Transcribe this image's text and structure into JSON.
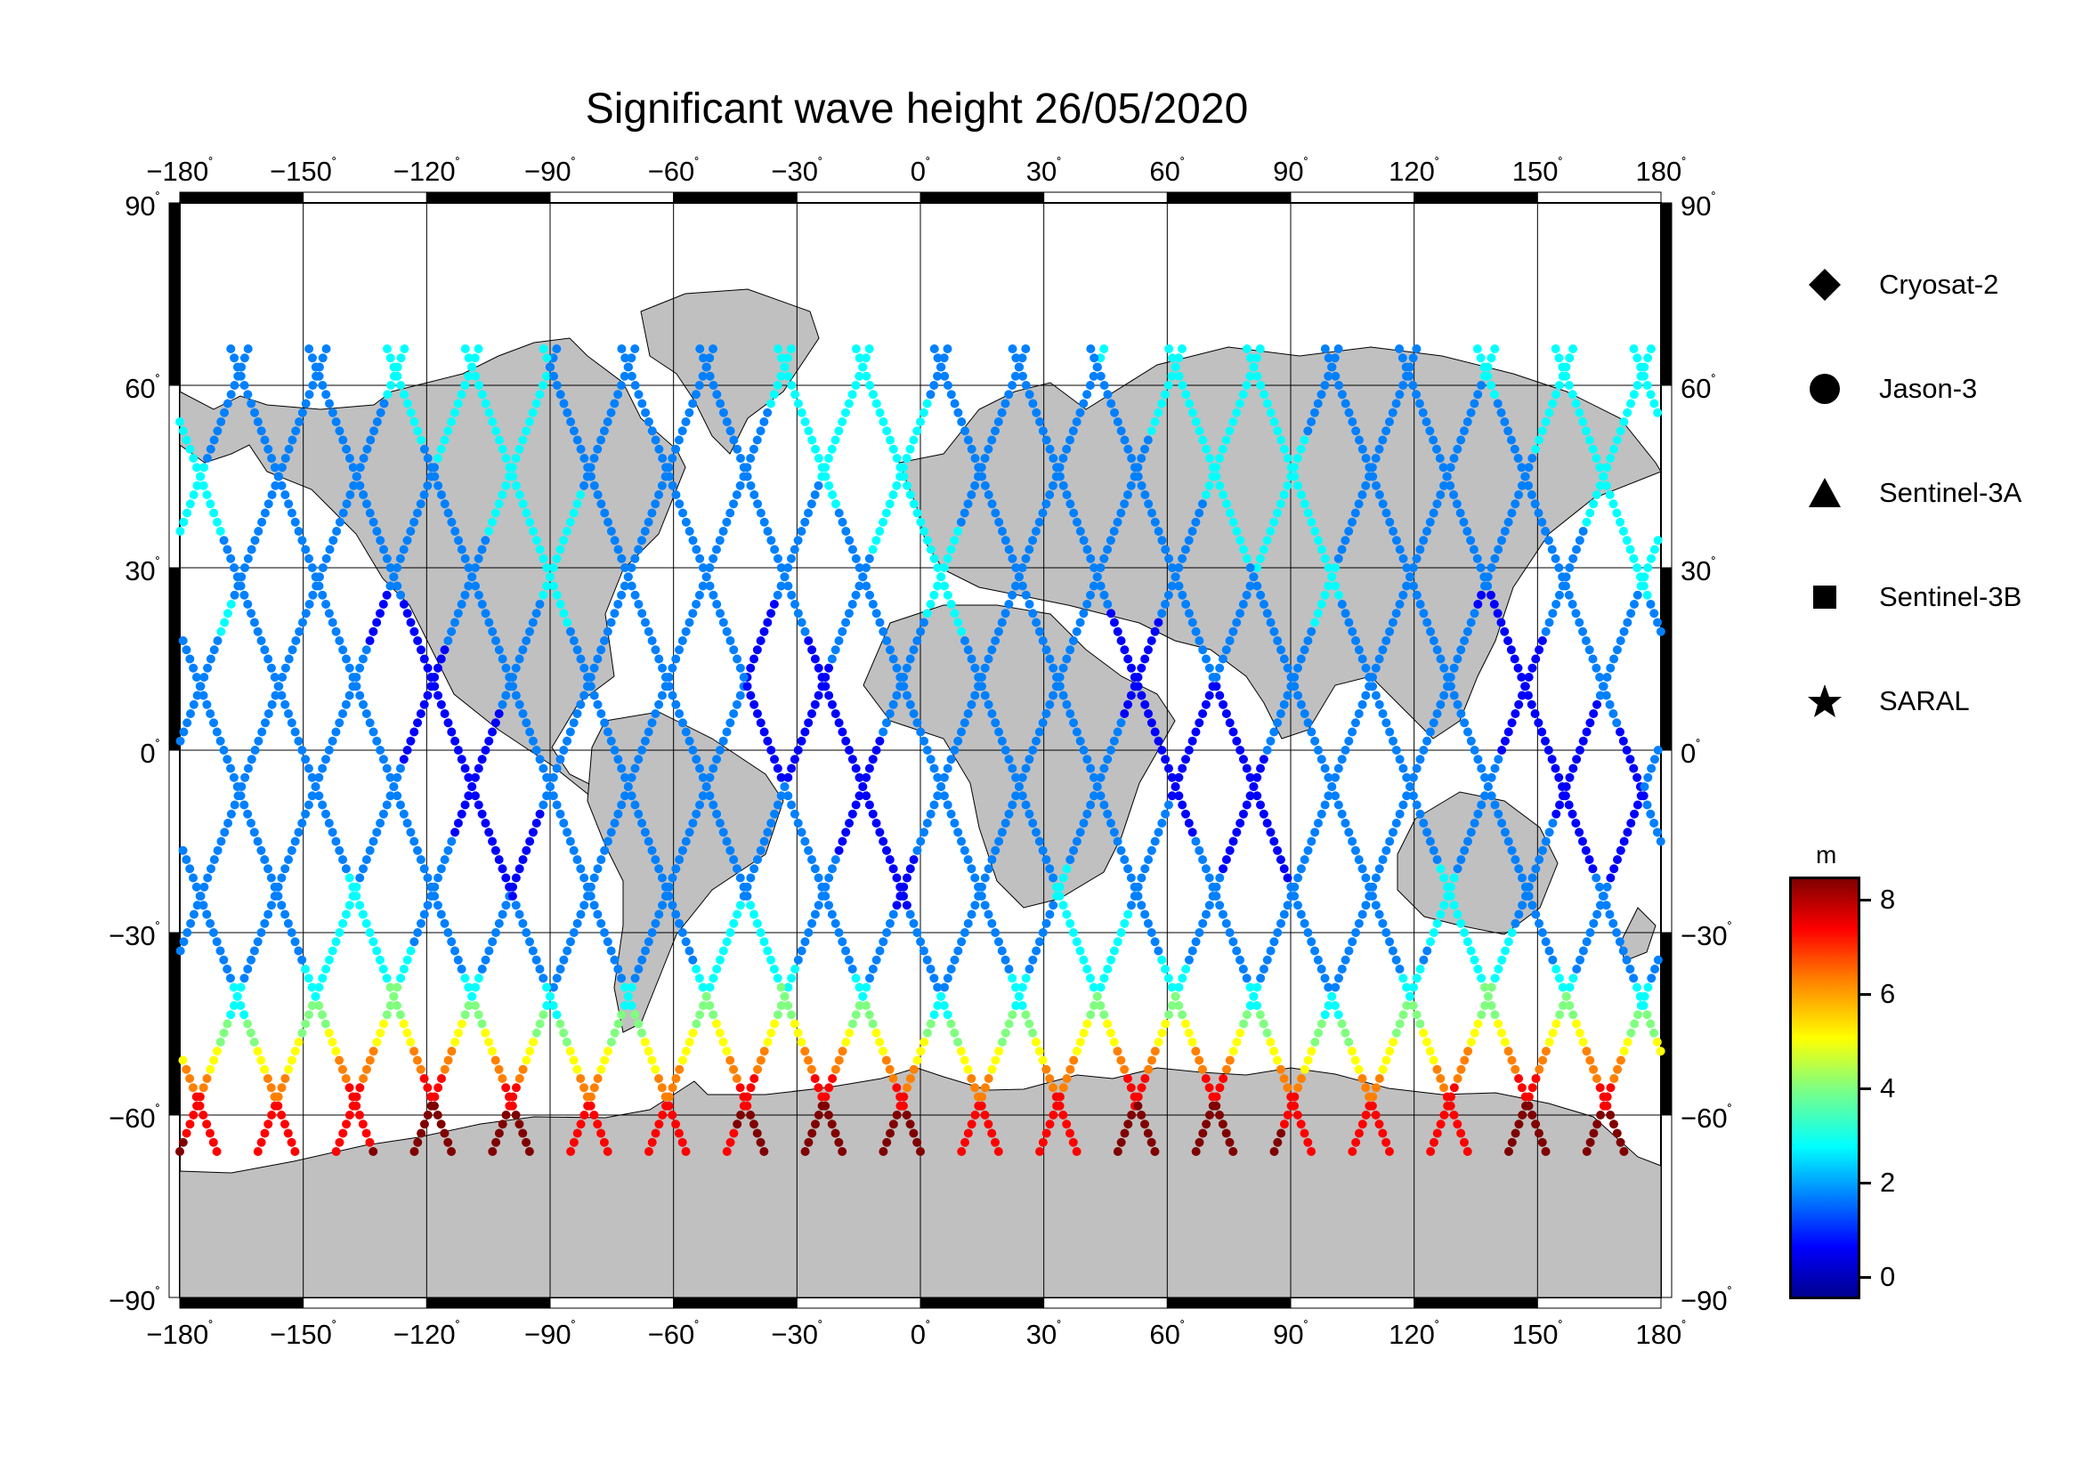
{
  "title": "Significant wave height 26/05/2020",
  "map": {
    "lon_ticks": [
      "−180",
      "−150",
      "−120",
      "−90",
      "−60",
      "−30",
      "0",
      "30",
      "60",
      "90",
      "120",
      "150",
      "180"
    ],
    "lat_ticks": [
      "90",
      "60",
      "30",
      "0",
      "−30",
      "−60",
      "−90"
    ],
    "degree_symbol": "˚",
    "land_color": "#c0c0c0",
    "ocean_color": "#ffffff",
    "projection": "equirectangular"
  },
  "legend": {
    "items": [
      {
        "label": "Cryosat-2",
        "symbol": "diamond"
      },
      {
        "label": "Jason-3",
        "symbol": "circle"
      },
      {
        "label": "Sentinel-3A",
        "symbol": "triangle"
      },
      {
        "label": "Sentinel-3B",
        "symbol": "square"
      },
      {
        "label": "SARAL",
        "symbol": "star"
      }
    ]
  },
  "colorbar": {
    "unit": "m",
    "ticks": [
      "8",
      "6",
      "4",
      "2",
      "0"
    ],
    "range": [
      -0.3,
      8.5
    ],
    "colors": [
      "#00008f",
      "#0000ff",
      "#0080ff",
      "#00ffff",
      "#80ff80",
      "#ffff00",
      "#ff8000",
      "#ff0000",
      "#800000"
    ]
  }
}
